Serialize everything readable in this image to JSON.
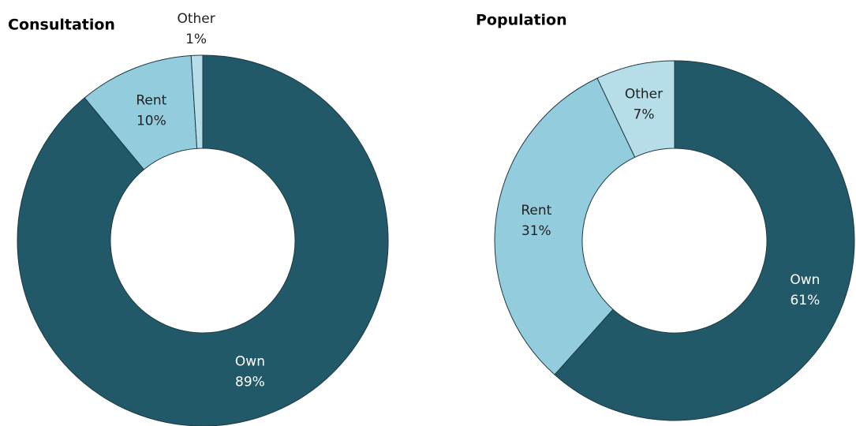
{
  "chart_data": [
    {
      "type": "donut",
      "title": "Consultation",
      "categories": [
        "Own",
        "Rent",
        "Other"
      ],
      "values": [
        89,
        10,
        1
      ],
      "value_labels": [
        "89%",
        "10%",
        "1%"
      ],
      "colors": [
        "#215968",
        "#93cddd",
        "#b7dee8"
      ]
    },
    {
      "type": "donut",
      "title": "Population",
      "categories": [
        "Own",
        "Rent",
        "Other"
      ],
      "values": [
        61,
        31,
        7
      ],
      "value_labels": [
        "61%",
        "31%",
        "7%"
      ],
      "colors": [
        "#215968",
        "#93cddd",
        "#b7dee8"
      ]
    }
  ]
}
